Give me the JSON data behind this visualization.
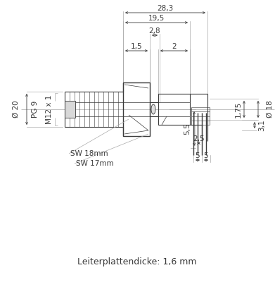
{
  "bg_color": "#ffffff",
  "line_color": "#3a3a3a",
  "dim_color": "#3a3a3a",
  "dim_line_color": "#aaaaaa",
  "title_text": "Leiterplattendicke: 1,6 mm",
  "fs_dim": 7.5,
  "fs_label": 7.5,
  "fs_title": 9.0,
  "annotations": {
    "dim_283": "28,3",
    "dim_195": "19,5",
    "dim_28": "2,8",
    "dim_15": "1,5",
    "dim_2": "2",
    "dim_20": "Ø 20",
    "dim_pg9": "PG 9",
    "dim_m12": "M12 x 1",
    "dim_sw18": "SW 18mm",
    "dim_sw17": "SW 17mm",
    "dim_55": "5,5",
    "dim_25": "2,5",
    "dim_5a": "5",
    "dim_5b": "5",
    "dim_175": "1,75",
    "dim_31": "3,1",
    "dim_18": "Ø 18"
  }
}
